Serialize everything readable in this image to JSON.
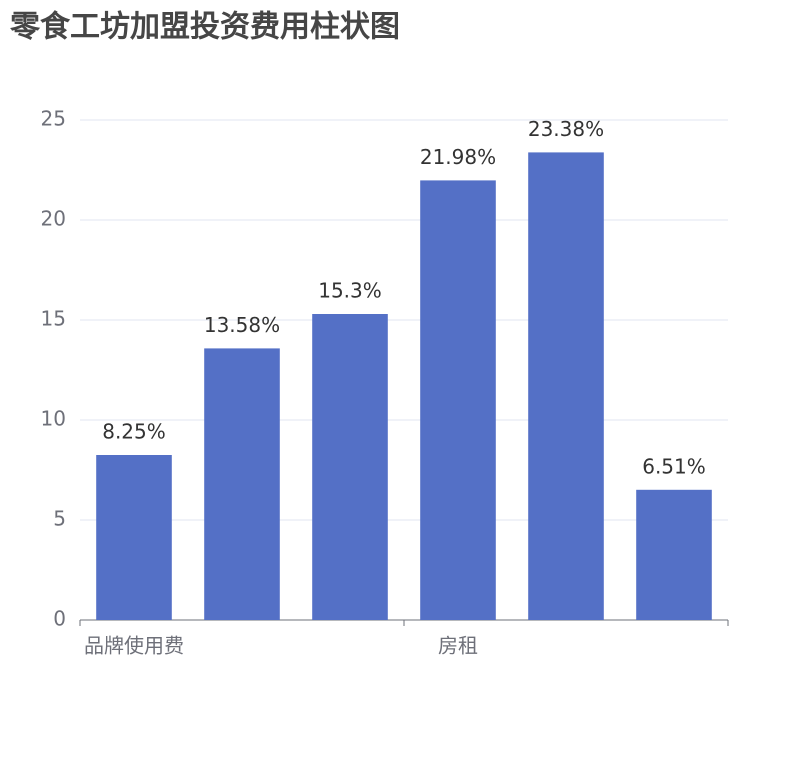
{
  "chart_data": {
    "type": "bar",
    "title": "零食工坊加盟投资费用柱状图",
    "categories": [
      "品牌使用费",
      null,
      null,
      "房租",
      null,
      null
    ],
    "values": [
      8.25,
      13.58,
      15.3,
      21.98,
      23.38,
      6.51
    ],
    "value_labels": [
      "8.25%",
      "13.58%",
      "15.3%",
      "21.98%",
      "23.38%",
      "6.51%"
    ],
    "color": "#5470c6",
    "ylim": [
      0,
      25
    ],
    "yticks": [
      0,
      5,
      10,
      15,
      20,
      25
    ],
    "grid": true
  }
}
